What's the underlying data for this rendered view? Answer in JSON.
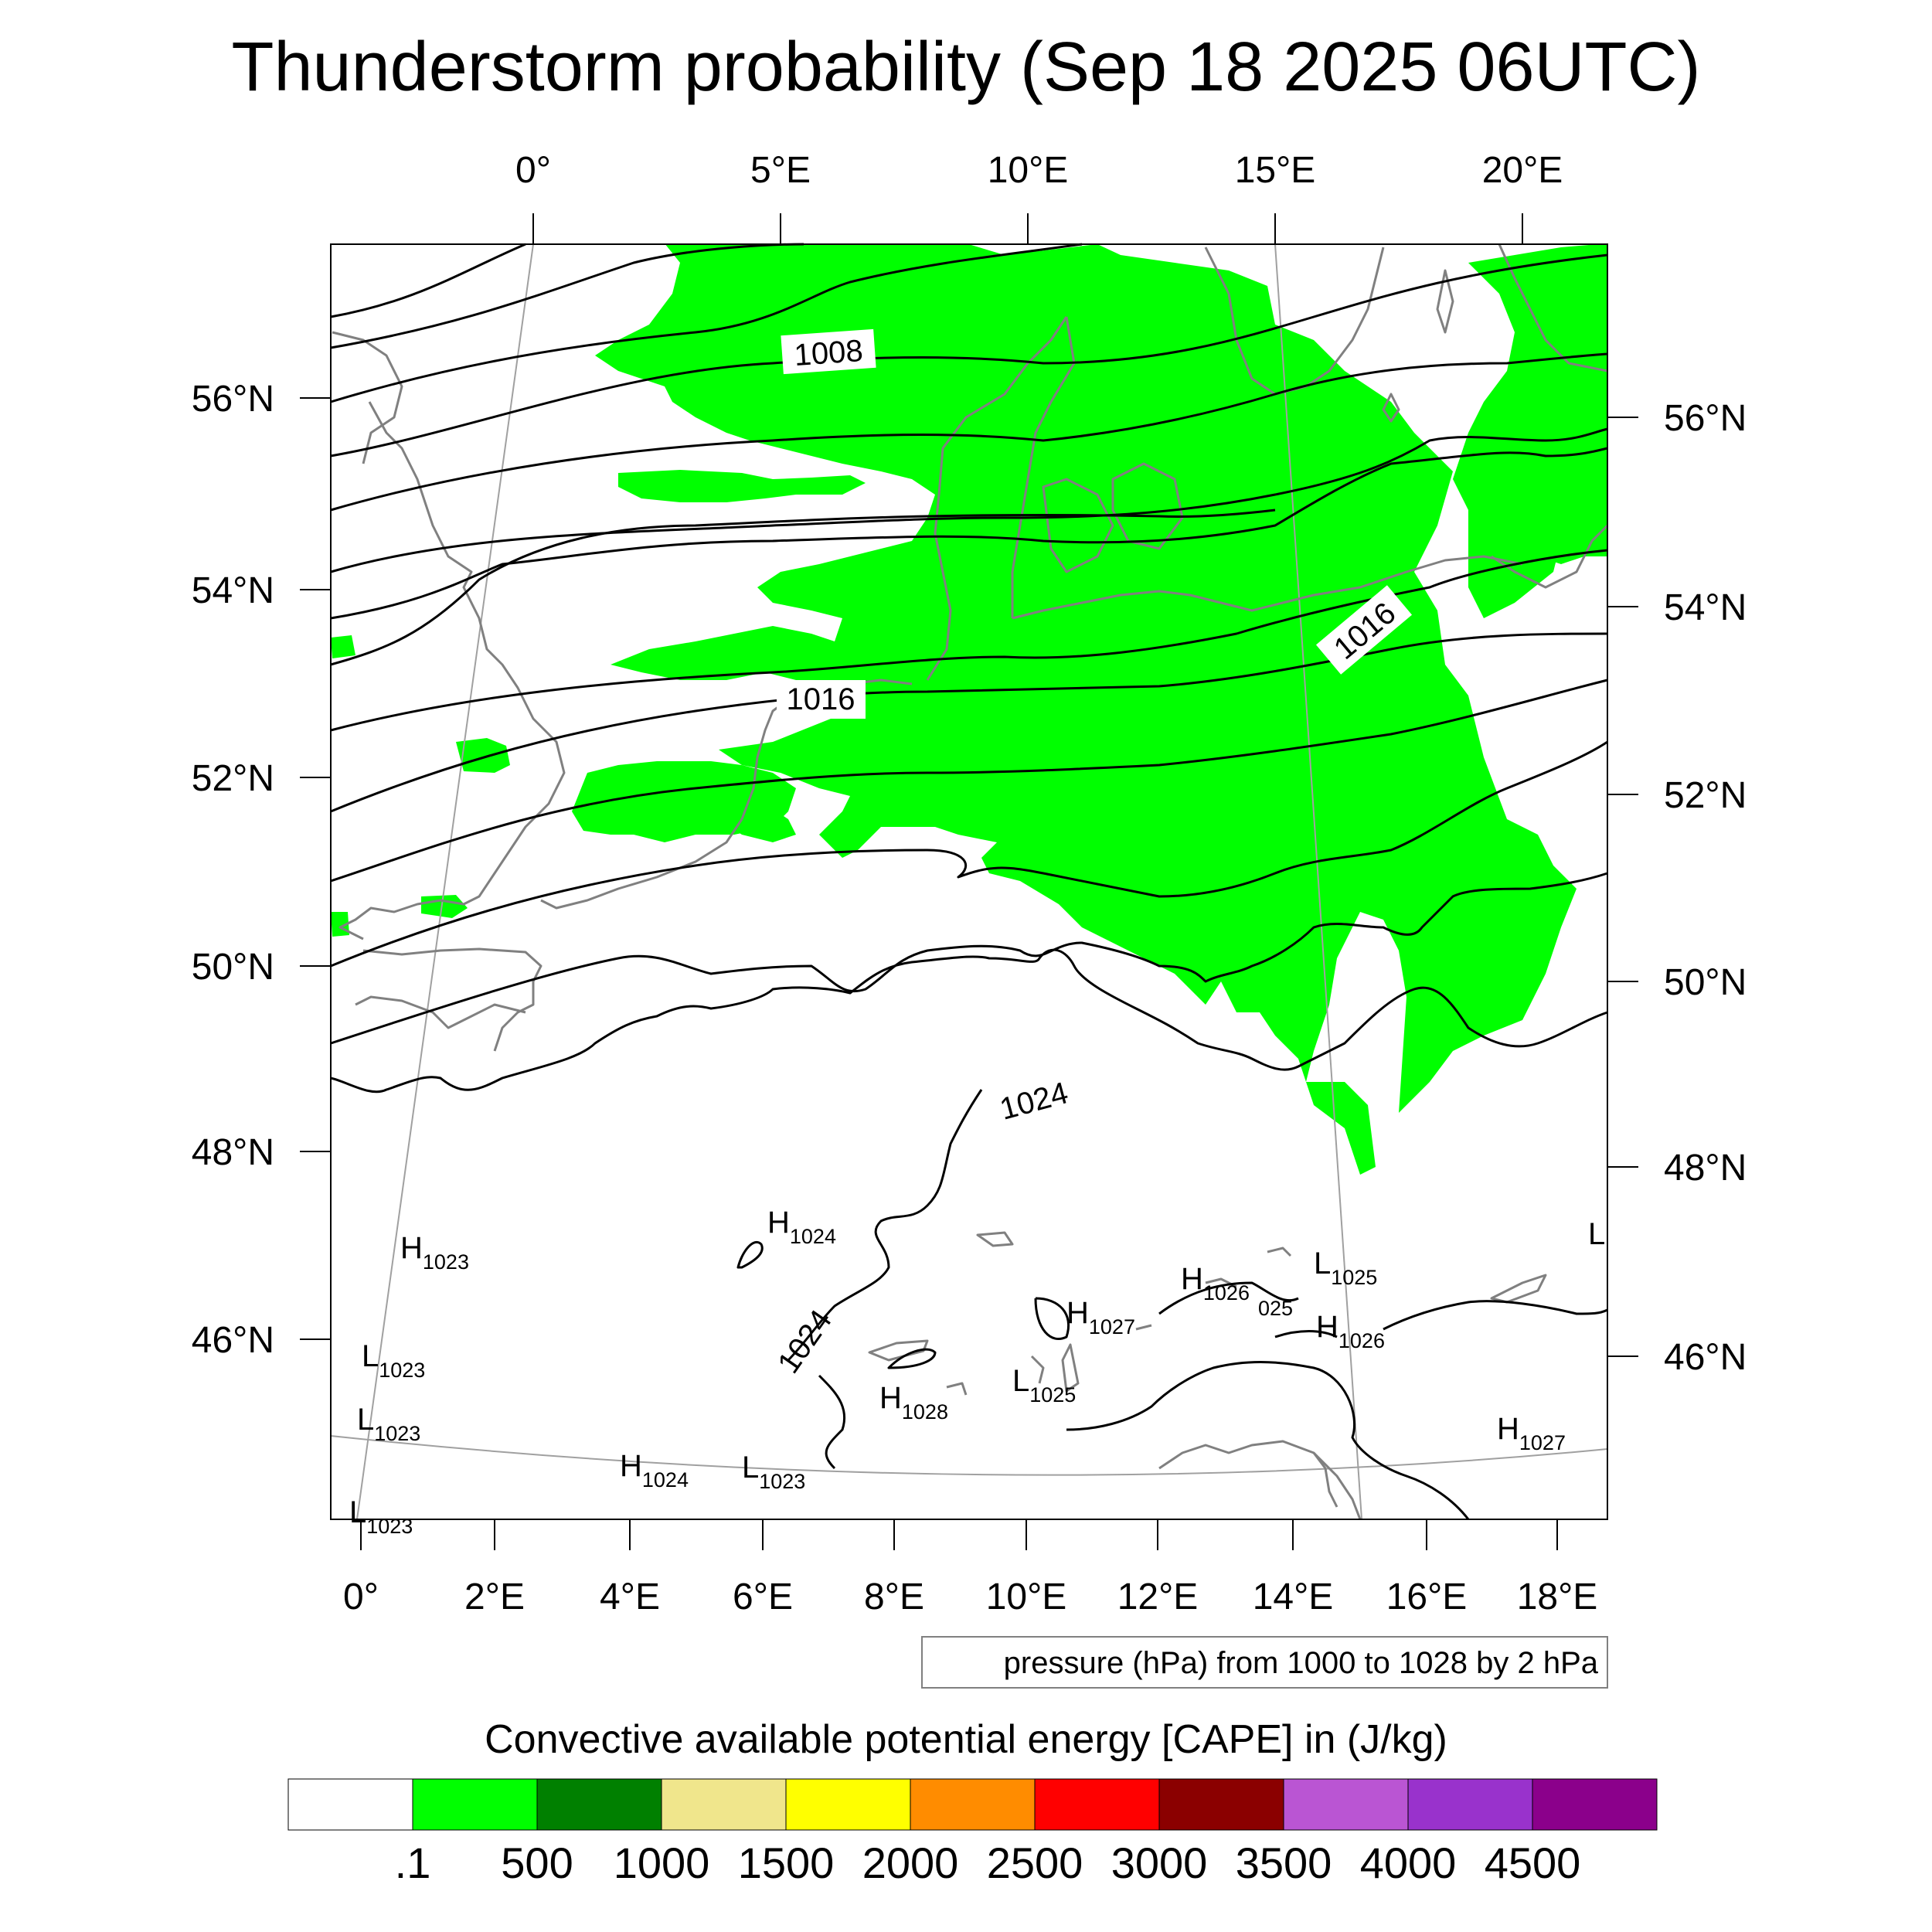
{
  "title": "Thunderstorm probability (Sep 18 2025 06UTC)",
  "top_lon_labels": [
    "0°",
    "5°E",
    "10°E",
    "15°E",
    "20°E"
  ],
  "bottom_lon_labels": [
    "0°",
    "2°E",
    "4°E",
    "6°E",
    "8°E",
    "10°E",
    "12°E",
    "14°E",
    "16°E",
    "18°E"
  ],
  "left_lat_labels": [
    "56°N",
    "54°N",
    "52°N",
    "50°N",
    "48°N",
    "46°N"
  ],
  "right_lat_labels": [
    "56°N",
    "54°N",
    "52°N",
    "50°N",
    "48°N",
    "46°N"
  ],
  "isobar_labels": [
    "1008",
    "1016",
    "1016",
    "1024",
    "1024"
  ],
  "pressure_centers": [
    {
      "type": "H",
      "value": "1023"
    },
    {
      "type": "L",
      "value": "1023"
    },
    {
      "type": "L",
      "value": "1023"
    },
    {
      "type": "L",
      "value": "1023"
    },
    {
      "type": "H",
      "value": "1024"
    },
    {
      "type": "H",
      "value": "1024"
    },
    {
      "type": "L",
      "value": "1023"
    },
    {
      "type": "H",
      "value": "1028"
    },
    {
      "type": "H",
      "value": "1027"
    },
    {
      "type": "L",
      "value": "1025"
    },
    {
      "type": "H",
      "value": "1026"
    },
    {
      "type": "L",
      "value": "1025"
    },
    {
      "type": "H",
      "value": "1026"
    },
    {
      "type": "H",
      "value": "1027"
    },
    {
      "type": "L",
      "value": ""
    }
  ],
  "partial_label": "025",
  "contour_info": "pressure (hPa) from 1000 to 1028 by 2 hPa",
  "colorbar": {
    "title": "Convective available potential energy [CAPE] in (J/kg)",
    "labels": [
      ".1",
      "500",
      "1000",
      "1500",
      "2000",
      "2500",
      "3000",
      "3500",
      "4000",
      "4500"
    ],
    "colors": [
      "#FFFFFF",
      "#00FF00",
      "#008000",
      "#F0E68C",
      "#FFFF00",
      "#FF8C00",
      "#FF0000",
      "#8B0000",
      "#BA55D3",
      "#9932CC",
      "#8B008B"
    ]
  },
  "colors": {
    "cape_fill": "#00FF00",
    "coastline": "#808080",
    "isobar": "#000000",
    "graticule": "#A0A0A0"
  }
}
